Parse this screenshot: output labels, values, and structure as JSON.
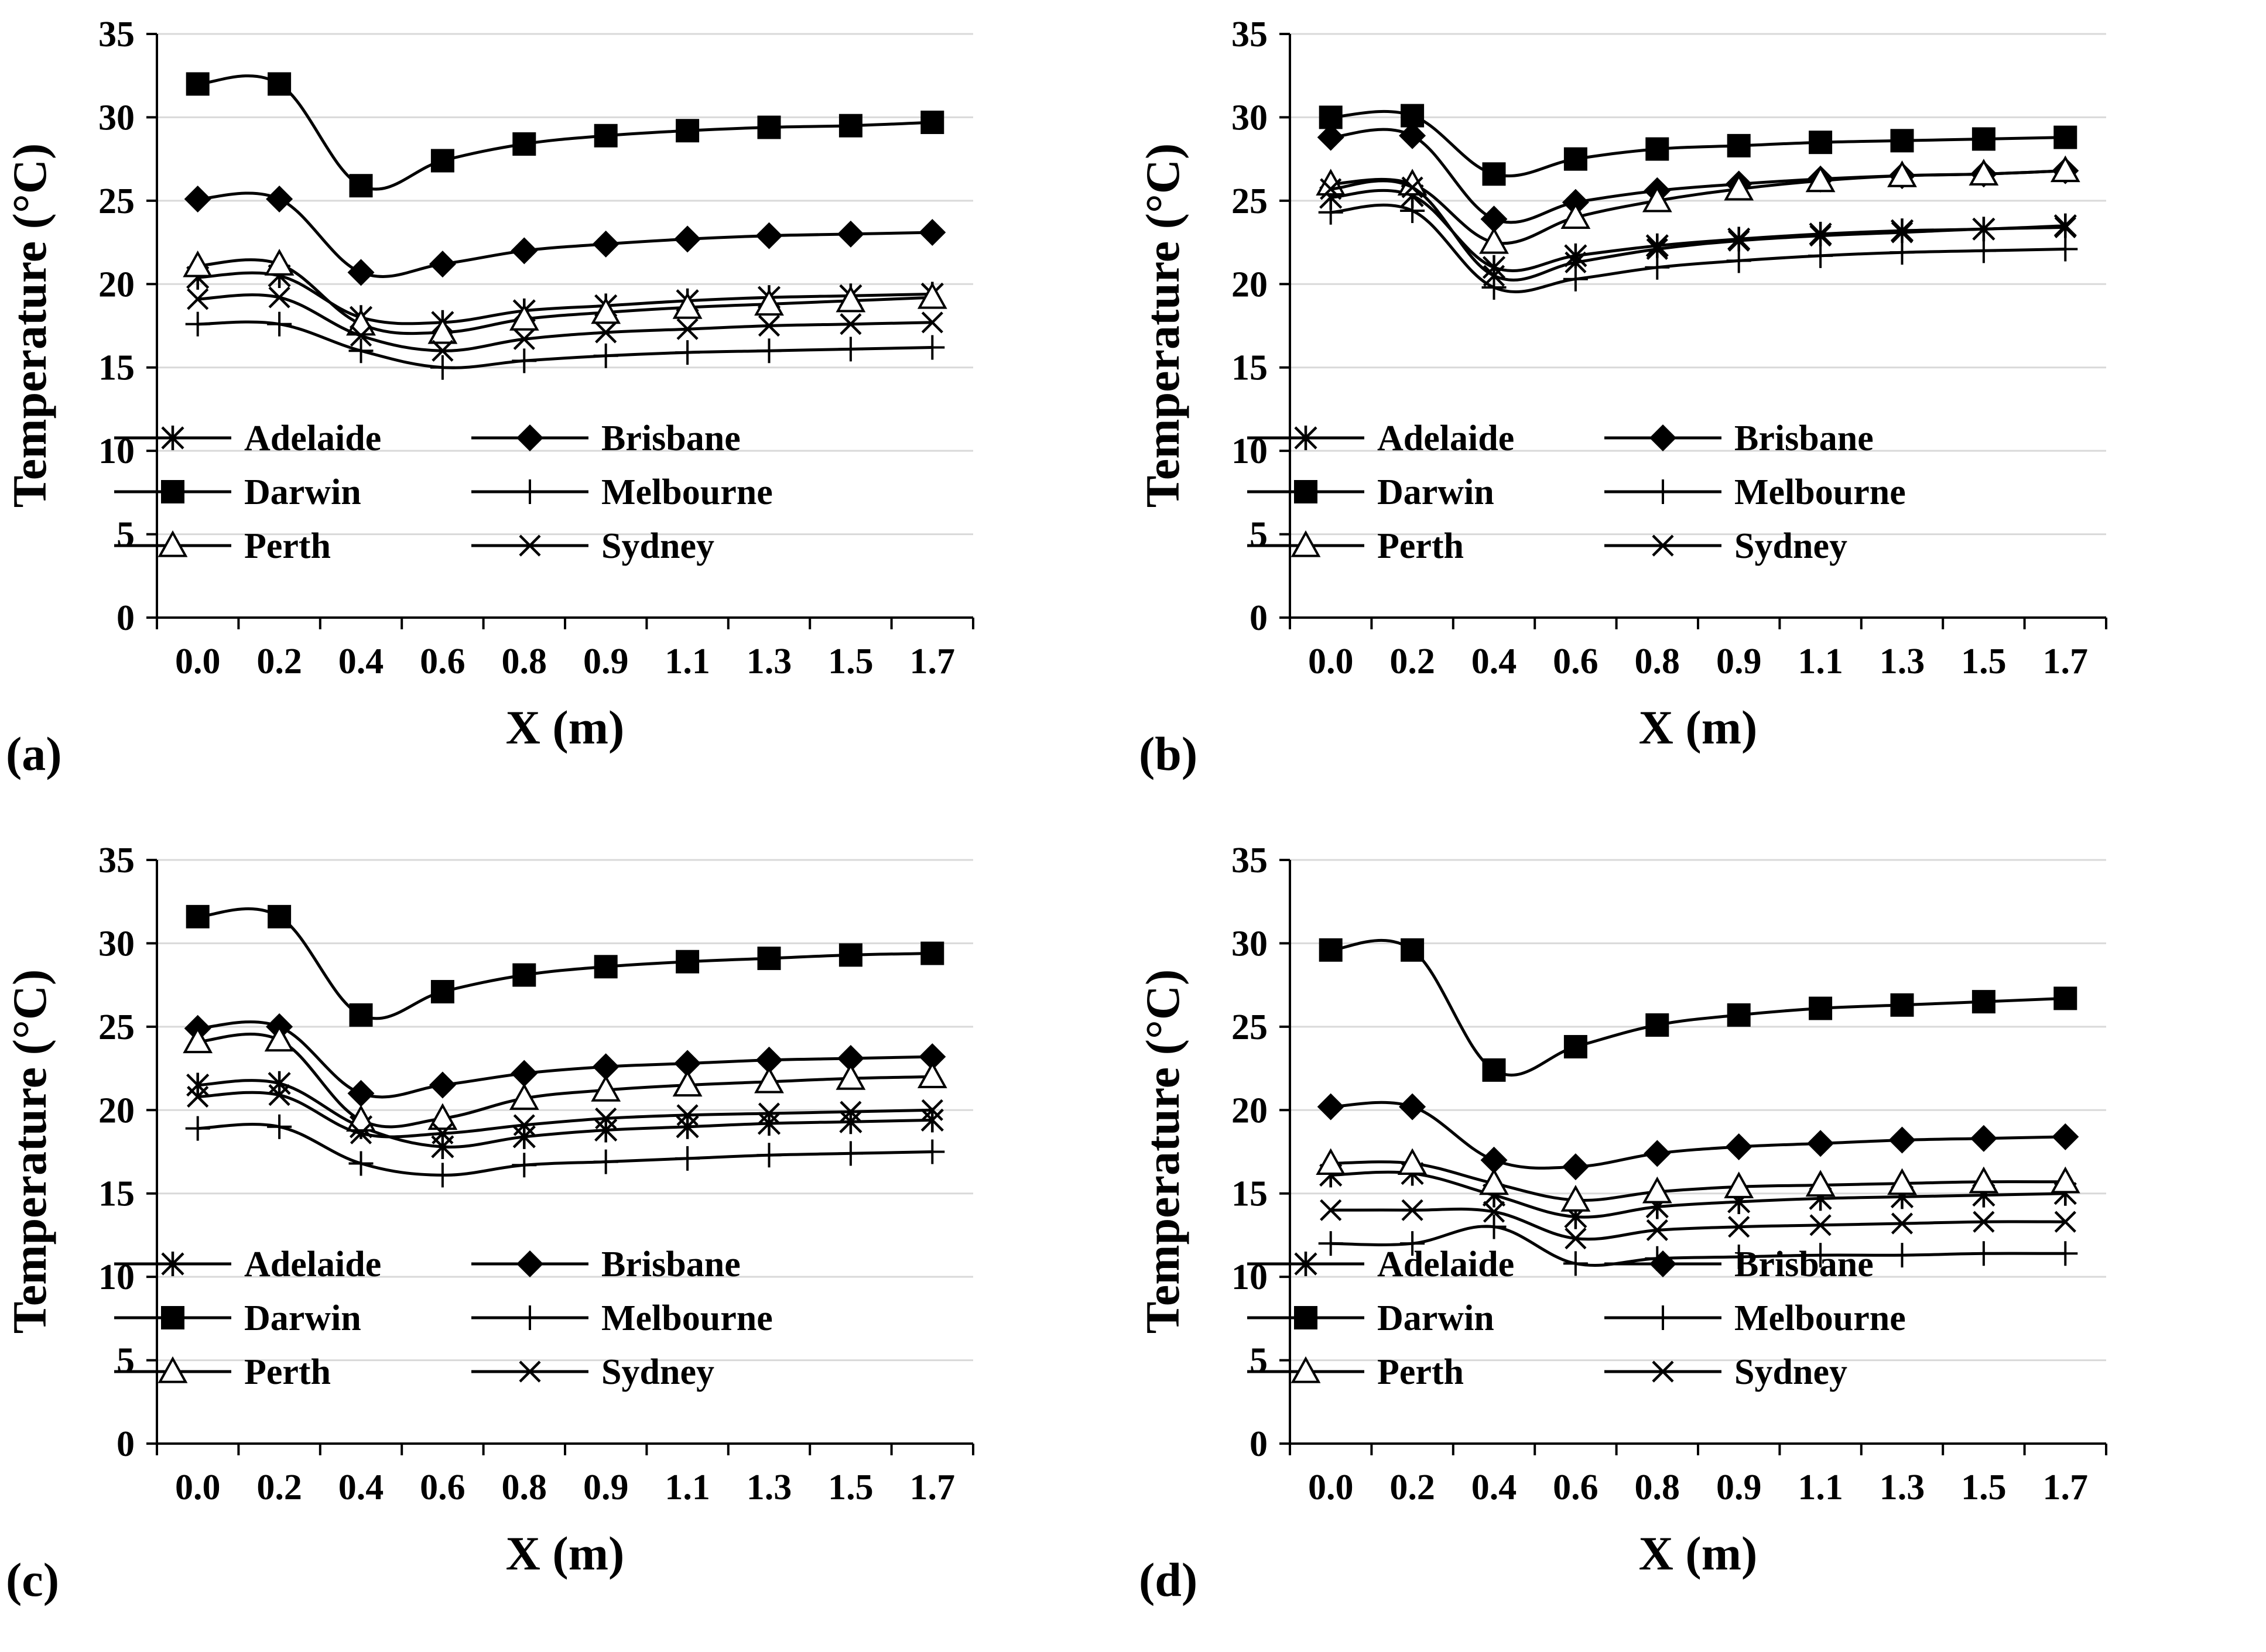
{
  "chart_data": [
    {
      "type": "line",
      "panel_label": "(a)",
      "xlabel": "X (m)",
      "ylabel": "Temperature (°C)",
      "ylim": [
        0,
        35
      ],
      "yticks": [
        "0",
        "5",
        "10",
        "15",
        "20",
        "25",
        "30",
        "35"
      ],
      "categories": [
        "0.0",
        "0.2",
        "0.4",
        "0.6",
        "0.8",
        "0.9",
        "1.1",
        "1.3",
        "1.5",
        "1.7"
      ],
      "grid": true,
      "legend": "lower-middle",
      "series": [
        {
          "name": "Adelaide",
          "marker": "asterisk",
          "values": [
            20.4,
            20.5,
            18.0,
            17.7,
            18.4,
            18.7,
            19.0,
            19.2,
            19.3,
            19.4
          ]
        },
        {
          "name": "Brisbane",
          "marker": "diamond",
          "values": [
            25.1,
            25.1,
            20.7,
            21.2,
            22.0,
            22.4,
            22.7,
            22.9,
            23.0,
            23.1
          ]
        },
        {
          "name": "Darwin",
          "marker": "square",
          "values": [
            32.0,
            32.0,
            25.9,
            27.4,
            28.4,
            28.9,
            29.2,
            29.4,
            29.5,
            29.7
          ]
        },
        {
          "name": "Melbourne",
          "marker": "plus",
          "values": [
            17.6,
            17.6,
            16.0,
            15.0,
            15.4,
            15.7,
            15.9,
            16.0,
            16.1,
            16.2
          ]
        },
        {
          "name": "Perth",
          "marker": "triangle",
          "values": [
            21.1,
            21.2,
            17.6,
            17.1,
            17.9,
            18.3,
            18.6,
            18.8,
            19.0,
            19.2
          ]
        },
        {
          "name": "Sydney",
          "marker": "x",
          "values": [
            19.1,
            19.2,
            16.9,
            16.0,
            16.7,
            17.1,
            17.3,
            17.5,
            17.6,
            17.7
          ]
        }
      ]
    },
    {
      "type": "line",
      "panel_label": "(b)",
      "xlabel": "X (m)",
      "ylabel": "Temperature (°C)",
      "ylim": [
        0,
        35
      ],
      "yticks": [
        "0",
        "5",
        "10",
        "15",
        "20",
        "25",
        "30",
        "35"
      ],
      "categories": [
        "0.0",
        "0.2",
        "0.4",
        "0.6",
        "0.8",
        "0.9",
        "1.1",
        "1.3",
        "1.5",
        "1.7"
      ],
      "grid": true,
      "legend": "lower-middle",
      "series": [
        {
          "name": "Adelaide",
          "marker": "asterisk",
          "values": [
            25.2,
            25.3,
            21.0,
            21.7,
            22.3,
            22.7,
            23.0,
            23.2,
            23.3,
            23.5
          ]
        },
        {
          "name": "Brisbane",
          "marker": "diamond",
          "values": [
            28.8,
            28.9,
            23.9,
            24.9,
            25.6,
            26.0,
            26.3,
            26.5,
            26.6,
            26.8
          ]
        },
        {
          "name": "Darwin",
          "marker": "square",
          "values": [
            30.0,
            30.1,
            26.6,
            27.5,
            28.1,
            28.3,
            28.5,
            28.6,
            28.7,
            28.8
          ]
        },
        {
          "name": "Melbourne",
          "marker": "plus",
          "values": [
            24.3,
            24.4,
            19.8,
            20.3,
            21.0,
            21.4,
            21.7,
            21.9,
            22.0,
            22.1
          ]
        },
        {
          "name": "Perth",
          "marker": "triangle",
          "values": [
            26.0,
            26.0,
            22.5,
            24.0,
            25.0,
            25.7,
            26.2,
            26.5,
            26.6,
            26.8
          ]
        },
        {
          "name": "Sydney",
          "marker": "x",
          "values": [
            25.7,
            25.8,
            20.5,
            21.3,
            22.1,
            22.6,
            22.9,
            23.1,
            23.3,
            23.4
          ]
        }
      ]
    },
    {
      "type": "line",
      "panel_label": "(c)",
      "xlabel": "X (m)",
      "ylabel": "Temperature (°C)",
      "ylim": [
        0,
        35
      ],
      "yticks": [
        "0",
        "5",
        "10",
        "15",
        "20",
        "25",
        "30",
        "35"
      ],
      "categories": [
        "0.0",
        "0.2",
        "0.4",
        "0.6",
        "0.8",
        "0.9",
        "1.1",
        "1.3",
        "1.5",
        "1.7"
      ],
      "grid": true,
      "legend": "lower-middle",
      "series": [
        {
          "name": "Adelaide",
          "marker": "asterisk",
          "values": [
            21.5,
            21.6,
            19.0,
            17.8,
            18.4,
            18.8,
            19.0,
            19.2,
            19.3,
            19.4
          ]
        },
        {
          "name": "Brisbane",
          "marker": "diamond",
          "values": [
            24.9,
            25.0,
            21.0,
            21.5,
            22.2,
            22.6,
            22.8,
            23.0,
            23.1,
            23.2
          ]
        },
        {
          "name": "Darwin",
          "marker": "square",
          "values": [
            31.6,
            31.6,
            25.7,
            27.1,
            28.1,
            28.6,
            28.9,
            29.1,
            29.3,
            29.4
          ]
        },
        {
          "name": "Melbourne",
          "marker": "plus",
          "values": [
            18.9,
            19.0,
            16.8,
            16.1,
            16.7,
            16.9,
            17.1,
            17.3,
            17.4,
            17.5
          ]
        },
        {
          "name": "Perth",
          "marker": "triangle",
          "values": [
            24.1,
            24.2,
            19.4,
            19.5,
            20.7,
            21.2,
            21.5,
            21.7,
            21.9,
            22.0
          ]
        },
        {
          "name": "Sydney",
          "marker": "x",
          "values": [
            20.8,
            20.9,
            18.6,
            18.6,
            19.1,
            19.5,
            19.7,
            19.8,
            19.9,
            20.0
          ]
        }
      ]
    },
    {
      "type": "line",
      "panel_label": "(d)",
      "xlabel": "X (m)",
      "ylabel": "Temperature (°C)",
      "ylim": [
        0,
        35
      ],
      "yticks": [
        "0",
        "5",
        "10",
        "15",
        "20",
        "25",
        "30",
        "35"
      ],
      "categories": [
        "0.0",
        "0.2",
        "0.4",
        "0.6",
        "0.8",
        "0.9",
        "1.1",
        "1.3",
        "1.5",
        "1.7"
      ],
      "grid": true,
      "legend": "lower-middle",
      "series": [
        {
          "name": "Adelaide",
          "marker": "asterisk",
          "values": [
            16.1,
            16.2,
            14.9,
            13.6,
            14.2,
            14.5,
            14.7,
            14.8,
            14.9,
            15.0
          ]
        },
        {
          "name": "Brisbane",
          "marker": "diamond",
          "values": [
            20.2,
            20.2,
            17.0,
            16.6,
            17.4,
            17.8,
            18.0,
            18.2,
            18.3,
            18.4
          ]
        },
        {
          "name": "Darwin",
          "marker": "square",
          "values": [
            29.6,
            29.6,
            22.4,
            23.8,
            25.1,
            25.7,
            26.1,
            26.3,
            26.5,
            26.7
          ]
        },
        {
          "name": "Melbourne",
          "marker": "plus",
          "values": [
            12.0,
            12.0,
            13.0,
            10.8,
            11.1,
            11.2,
            11.3,
            11.3,
            11.4,
            11.4
          ]
        },
        {
          "name": "Perth",
          "marker": "triangle",
          "values": [
            16.8,
            16.8,
            15.6,
            14.6,
            15.1,
            15.4,
            15.5,
            15.6,
            15.7,
            15.7
          ]
        },
        {
          "name": "Sydney",
          "marker": "x",
          "values": [
            14.0,
            14.0,
            13.9,
            12.3,
            12.8,
            13.0,
            13.1,
            13.2,
            13.3,
            13.3
          ]
        }
      ]
    }
  ]
}
